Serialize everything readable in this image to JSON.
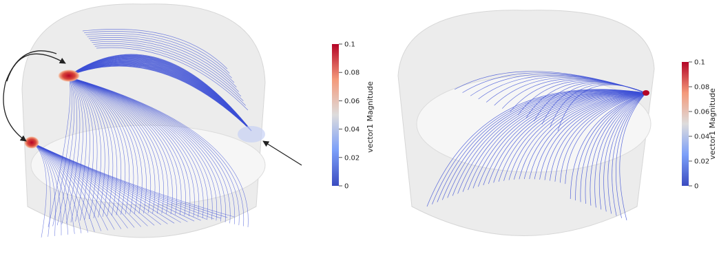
{
  "colors": {
    "streamline": "#3c4fd6",
    "cylinder_fill": "#e9e9e9",
    "cylinder_edge": "#cfcfcf",
    "hot": "#b40426",
    "arrow": "#222222"
  },
  "colorbar_left": {
    "title": "vector1 Magnitude",
    "ticks": [
      "0.1",
      "0.08",
      "0.06",
      "0.04",
      "0.02",
      "0"
    ],
    "range": [
      0,
      0.1
    ]
  },
  "colorbar_right": {
    "title": "vector1 Magnitude",
    "ticks": [
      "0.1",
      "0.08",
      "0.06",
      "0.04",
      "0.02",
      "0"
    ],
    "range": [
      0,
      0.1
    ]
  }
}
